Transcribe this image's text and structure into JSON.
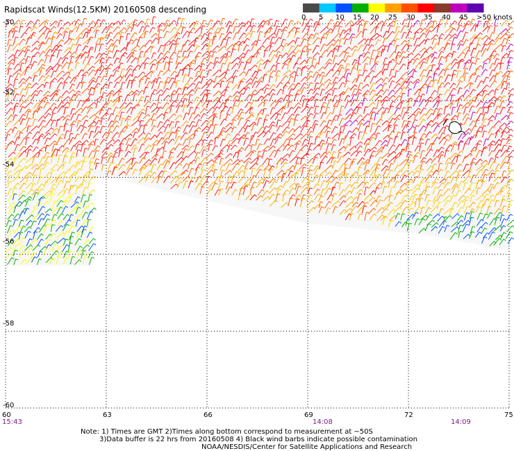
{
  "title": "Rapidscat Winds(12.5KM) 20160508 descending",
  "colorbar": {
    "colors": [
      "#4a4a4a",
      "#00c8ff",
      "#0050ff",
      "#00b000",
      "#ffff00",
      "#ffa000",
      "#ff5000",
      "#ff0000",
      "#8a3a2a",
      "#c000c0",
      "#6000b0"
    ],
    "labels": [
      "0",
      "5",
      "10",
      "15",
      "20",
      "25",
      "30",
      "35",
      "40",
      "45",
      ">50 knots"
    ]
  },
  "latitude_labels": [
    "-50",
    "-52",
    "-54",
    "-56",
    "-58",
    "-60"
  ],
  "longitude_labels": [
    "60",
    "63",
    "66",
    "69",
    "72",
    "75"
  ],
  "times": [
    "15:43",
    "14:08",
    "14:09"
  ],
  "notes": [
    "Note: 1) Times are GMT 2)Times along bottom correspond to measurement at ~50S",
    "3)Data buffer is 22 hrs from 20160508 4) Black wind barbs indicate possible contamination",
    "NOAA/NESDIS/Center for Satellite Applications and Research"
  ],
  "map": {
    "lat_range": [
      -60,
      -50
    ],
    "lon_range": [
      60,
      75
    ],
    "wind_barb_colors_note": "barbs colored by speed per colorbar"
  }
}
